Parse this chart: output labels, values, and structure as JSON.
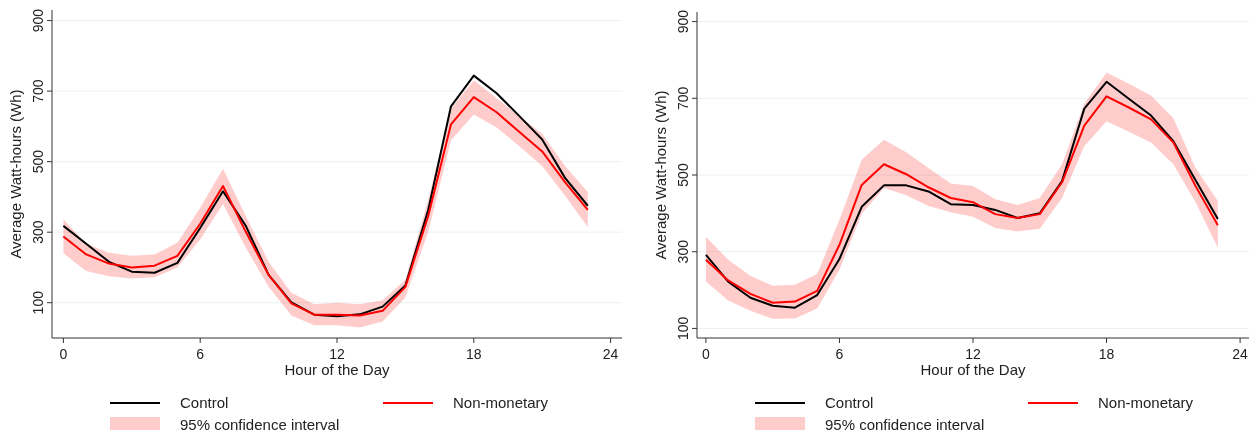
{
  "chart_data": [
    {
      "type": "line",
      "xlabel": "Hour of the Day",
      "ylabel": "Average Watt-hours (Wh)",
      "annotations": [
        "95% confidence interval"
      ],
      "x": [
        0,
        1,
        2,
        3,
        4,
        5,
        6,
        7,
        8,
        9,
        10,
        11,
        12,
        13,
        14,
        15,
        16,
        17,
        18,
        19,
        20,
        21,
        22,
        23
      ],
      "xlim": [
        -0.5,
        24.5
      ],
      "xticks": [
        0,
        6,
        12,
        18,
        24
      ],
      "ylim": [
        0,
        930
      ],
      "yticks": [
        100,
        300,
        500,
        700,
        900
      ],
      "grid": "y",
      "legend": "bottom",
      "series": [
        {
          "name": "Control",
          "color": "#000000",
          "values": [
            318,
            267,
            216,
            188,
            185,
            213,
            312,
            416,
            318,
            179,
            101,
            66,
            62,
            67,
            89,
            149,
            363,
            657,
            744,
            694,
            629,
            563,
            454,
            375
          ]
        },
        {
          "name": "Non-monetary",
          "color": "#ff0000",
          "values": [
            288,
            237,
            211,
            200,
            205,
            233,
            324,
            431,
            301,
            179,
            98,
            66,
            66,
            64,
            77,
            145,
            346,
            606,
            683,
            640,
            584,
            529,
            442,
            363
          ],
          "lower": [
            240,
            190,
            175,
            169,
            172,
            200,
            279,
            380,
            256,
            145,
            64,
            36,
            36,
            30,
            47,
            115,
            301,
            561,
            634,
            597,
            544,
            488,
            403,
            315
          ],
          "upper": [
            337,
            267,
            242,
            233,
            237,
            270,
            369,
            480,
            346,
            216,
            128,
            96,
            100,
            96,
            107,
            165,
            391,
            651,
            731,
            680,
            629,
            579,
            488,
            414
          ]
        }
      ]
    },
    {
      "type": "line",
      "xlabel": "Hour of the Day",
      "ylabel": "Average Watt-hours (Wh)",
      "annotations": [
        "95% confidence interval"
      ],
      "x": [
        0,
        1,
        2,
        3,
        4,
        5,
        6,
        7,
        8,
        9,
        10,
        11,
        12,
        13,
        14,
        15,
        16,
        17,
        18,
        19,
        20,
        21,
        22,
        23
      ],
      "xlim": [
        -0.4,
        24.4
      ],
      "xticks": [
        0,
        6,
        12,
        18,
        24
      ],
      "ylim": [
        75,
        925
      ],
      "yticks": [
        100,
        300,
        500,
        700,
        900
      ],
      "grid": "y",
      "legend": "bottom",
      "series": [
        {
          "name": "Control",
          "color": "#000000",
          "values": [
            292,
            222,
            180,
            159,
            154,
            187,
            281,
            417,
            473,
            473,
            457,
            424,
            422,
            409,
            388,
            400,
            484,
            673,
            743,
            699,
            655,
            588,
            486,
            385
          ]
        },
        {
          "name": "Non-monetary",
          "color": "#ff0000",
          "values": [
            279,
            225,
            190,
            167,
            170,
            198,
            318,
            474,
            528,
            502,
            468,
            440,
            429,
            398,
            388,
            398,
            481,
            629,
            705,
            676,
            645,
            585,
            471,
            369
          ],
          "lower": [
            222,
            173,
            146,
            125,
            126,
            152,
            253,
            398,
            466,
            447,
            419,
            403,
            391,
            362,
            353,
            360,
            440,
            575,
            640,
            613,
            585,
            528,
            429,
            310
          ],
          "upper": [
            339,
            279,
            237,
            211,
            214,
            242,
            383,
            540,
            592,
            559,
            518,
            478,
            471,
            437,
            422,
            440,
            528,
            686,
            767,
            738,
            707,
            648,
            518,
            432
          ]
        }
      ]
    }
  ]
}
